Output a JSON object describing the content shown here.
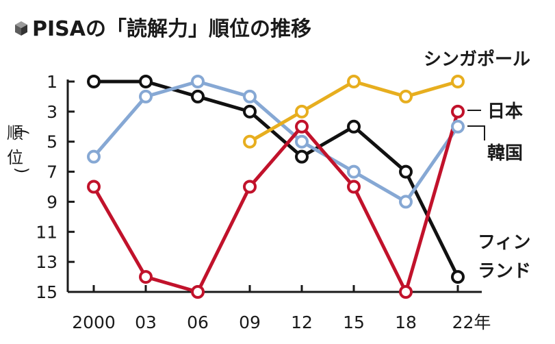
{
  "chart_data": {
    "type": "line",
    "title": "PISAの「読解力」順位の推移",
    "ylabel": "(順位)",
    "x": [
      "2000",
      "03",
      "06",
      "09",
      "12",
      "15",
      "18",
      "22"
    ],
    "x_suffix": "年",
    "ylim": [
      15,
      1
    ],
    "yticks": [
      1,
      3,
      5,
      7,
      9,
      11,
      13,
      15
    ],
    "grid": false,
    "y_inverted": true,
    "series": [
      {
        "name": "フィンランド",
        "color": "#111111",
        "values": [
          1,
          1,
          2,
          3,
          6,
          4,
          7,
          14
        ]
      },
      {
        "name": "韓国",
        "color": "#86a8d4",
        "values": [
          6,
          2,
          1,
          2,
          5,
          7,
          9,
          4
        ]
      },
      {
        "name": "シンガポール",
        "color": "#e7ae1f",
        "values": [
          null,
          null,
          null,
          5,
          3,
          1,
          2,
          1
        ]
      },
      {
        "name": "日本",
        "color": "#c1122b",
        "values": [
          8,
          14,
          15,
          8,
          4,
          8,
          15,
          3
        ]
      }
    ]
  }
}
